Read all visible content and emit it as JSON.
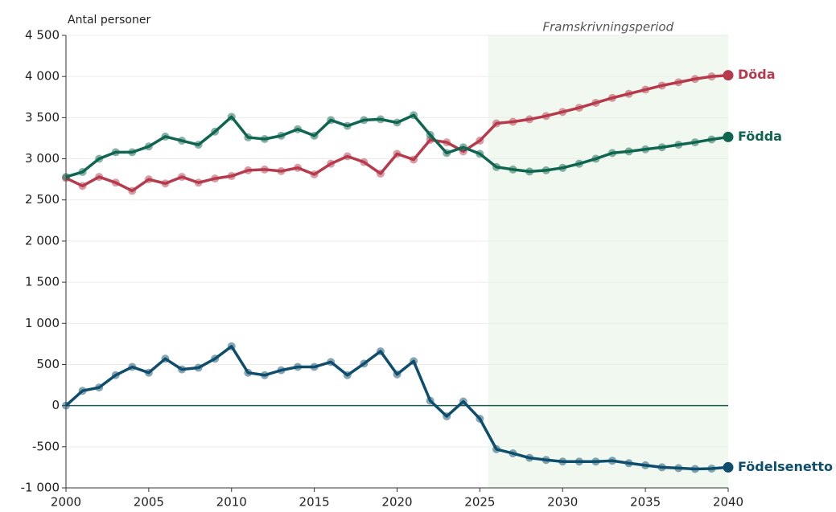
{
  "chart_data": {
    "type": "line",
    "y_label": "Antal personer",
    "annotation": "Framskrivningsperiod",
    "shaded_region": [
      2025.5,
      2040
    ],
    "x": [
      2000,
      2001,
      2002,
      2003,
      2004,
      2005,
      2006,
      2007,
      2008,
      2009,
      2010,
      2011,
      2012,
      2013,
      2014,
      2015,
      2016,
      2017,
      2018,
      2019,
      2020,
      2021,
      2022,
      2023,
      2024,
      2025,
      2026,
      2027,
      2028,
      2029,
      2030,
      2031,
      2032,
      2033,
      2034,
      2035,
      2036,
      2037,
      2038,
      2039,
      2040
    ],
    "xlim": [
      2000,
      2040
    ],
    "xticks": [
      2000,
      2005,
      2010,
      2015,
      2020,
      2025,
      2030,
      2035,
      2040
    ],
    "ylim": [
      -1000,
      4500
    ],
    "yticks": [
      {
        "value": -1000,
        "label": "-1 000"
      },
      -500,
      0,
      500,
      {
        "value": 1000,
        "label": "1 000"
      },
      {
        "value": 1500,
        "label": "1 500"
      },
      {
        "value": 2000,
        "label": "2 000"
      },
      {
        "value": 2500,
        "label": "2 500"
      },
      {
        "value": 3000,
        "label": "3 000"
      },
      {
        "value": 3500,
        "label": "3 500"
      },
      {
        "value": 4000,
        "label": "4 000"
      },
      {
        "value": 4500,
        "label": "4 500"
      }
    ],
    "grid": true,
    "series": [
      {
        "name": "Döda",
        "color": "#b63a4c",
        "values": [
          2765,
          2670,
          2780,
          2710,
          2610,
          2750,
          2700,
          2780,
          2710,
          2760,
          2790,
          2860,
          2870,
          2850,
          2890,
          2810,
          2940,
          3030,
          2960,
          2820,
          3060,
          2990,
          3230,
          3200,
          3090,
          3220,
          3430,
          3450,
          3480,
          3520,
          3570,
          3620,
          3680,
          3740,
          3790,
          3840,
          3890,
          3930,
          3970,
          4000,
          4015
        ]
      },
      {
        "name": "Födda",
        "color": "#0f6650",
        "values": [
          2780,
          2840,
          3000,
          3080,
          3080,
          3150,
          3270,
          3220,
          3170,
          3330,
          3510,
          3260,
          3240,
          3280,
          3360,
          3280,
          3470,
          3400,
          3470,
          3480,
          3440,
          3530,
          3290,
          3070,
          3140,
          3060,
          2900,
          2870,
          2845,
          2860,
          2890,
          2940,
          3000,
          3070,
          3090,
          3115,
          3140,
          3170,
          3200,
          3235,
          3265
        ]
      },
      {
        "name": "Födelsenetto",
        "color": "#0d4d6d",
        "values": [
          0,
          180,
          220,
          370,
          470,
          400,
          570,
          440,
          460,
          570,
          720,
          400,
          370,
          430,
          470,
          470,
          530,
          370,
          510,
          660,
          380,
          540,
          60,
          -130,
          50,
          -160,
          -530,
          -580,
          -635,
          -660,
          -680,
          -680,
          -680,
          -670,
          -700,
          -725,
          -750,
          -760,
          -770,
          -765,
          -750
        ]
      }
    ]
  }
}
